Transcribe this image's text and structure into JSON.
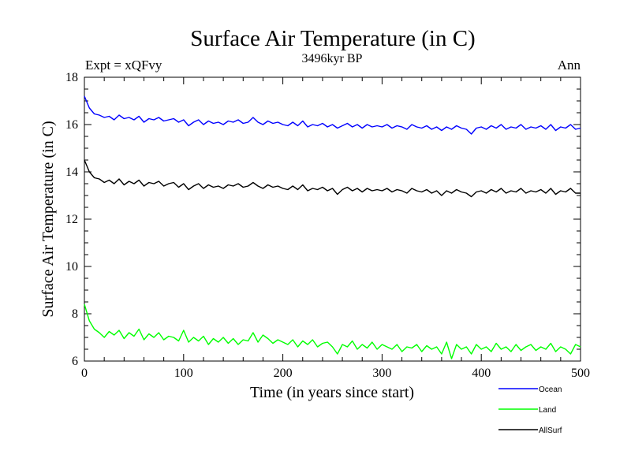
{
  "chart_data": {
    "type": "line",
    "title": "Surface Air Temperature (in C)",
    "subtitle": "3496kyr BP",
    "left_label": "Expt = xQFvy",
    "right_label": "Ann",
    "xlabel": "Time (in years since start)",
    "ylabel": "Surface Air Temperature (in C)",
    "xlim": [
      0,
      500
    ],
    "ylim": [
      6,
      18
    ],
    "xticks": [
      0,
      100,
      200,
      300,
      400,
      500
    ],
    "yticks": [
      6,
      8,
      10,
      12,
      14,
      16,
      18
    ],
    "legend_position": "bottom-right",
    "series": [
      {
        "name": "Ocean",
        "color": "#0000ff",
        "x": [
          0,
          5,
          10,
          15,
          20,
          25,
          30,
          35,
          40,
          45,
          50,
          55,
          60,
          65,
          70,
          75,
          80,
          85,
          90,
          95,
          100,
          105,
          110,
          115,
          120,
          125,
          130,
          135,
          140,
          145,
          150,
          155,
          160,
          165,
          170,
          175,
          180,
          185,
          190,
          195,
          200,
          205,
          210,
          215,
          220,
          225,
          230,
          235,
          240,
          245,
          250,
          255,
          260,
          265,
          270,
          275,
          280,
          285,
          290,
          295,
          300,
          305,
          310,
          315,
          320,
          325,
          330,
          335,
          340,
          345,
          350,
          355,
          360,
          365,
          370,
          375,
          380,
          385,
          390,
          395,
          400,
          405,
          410,
          415,
          420,
          425,
          430,
          435,
          440,
          445,
          450,
          455,
          460,
          465,
          470,
          475,
          480,
          485,
          490,
          495,
          500
        ],
        "values": [
          17.2,
          16.7,
          16.45,
          16.4,
          16.3,
          16.35,
          16.2,
          16.4,
          16.25,
          16.3,
          16.2,
          16.35,
          16.1,
          16.25,
          16.2,
          16.3,
          16.15,
          16.2,
          16.25,
          16.1,
          16.2,
          15.95,
          16.1,
          16.2,
          16.0,
          16.15,
          16.05,
          16.1,
          16.0,
          16.15,
          16.1,
          16.2,
          16.05,
          16.1,
          16.3,
          16.1,
          16.0,
          16.15,
          16.05,
          16.1,
          16.0,
          15.95,
          16.1,
          15.95,
          16.15,
          15.9,
          16.0,
          15.95,
          16.05,
          15.9,
          16.0,
          15.85,
          15.95,
          16.05,
          15.9,
          16.0,
          15.85,
          16.0,
          15.9,
          15.95,
          15.9,
          16.0,
          15.85,
          15.95,
          15.9,
          15.8,
          16.0,
          15.9,
          15.85,
          15.95,
          15.8,
          15.9,
          15.75,
          15.9,
          15.8,
          15.95,
          15.85,
          15.8,
          15.6,
          15.85,
          15.9,
          15.8,
          15.95,
          15.85,
          16.0,
          15.8,
          15.9,
          15.85,
          16.0,
          15.8,
          15.9,
          15.85,
          15.95,
          15.8,
          16.0,
          15.75,
          15.9,
          15.85,
          16.0,
          15.8,
          15.85
        ]
      },
      {
        "name": "Land",
        "color": "#00ff00",
        "x": [
          0,
          5,
          10,
          15,
          20,
          25,
          30,
          35,
          40,
          45,
          50,
          55,
          60,
          65,
          70,
          75,
          80,
          85,
          90,
          95,
          100,
          105,
          110,
          115,
          120,
          125,
          130,
          135,
          140,
          145,
          150,
          155,
          160,
          165,
          170,
          175,
          180,
          185,
          190,
          195,
          200,
          205,
          210,
          215,
          220,
          225,
          230,
          235,
          240,
          245,
          250,
          255,
          260,
          265,
          270,
          275,
          280,
          285,
          290,
          295,
          300,
          305,
          310,
          315,
          320,
          325,
          330,
          335,
          340,
          345,
          350,
          355,
          360,
          365,
          370,
          375,
          380,
          385,
          390,
          395,
          400,
          405,
          410,
          415,
          420,
          425,
          430,
          435,
          440,
          445,
          450,
          455,
          460,
          465,
          470,
          475,
          480,
          485,
          490,
          495,
          500
        ],
        "values": [
          8.4,
          7.7,
          7.35,
          7.2,
          7.0,
          7.25,
          7.1,
          7.3,
          6.95,
          7.2,
          7.05,
          7.35,
          6.9,
          7.15,
          7.0,
          7.2,
          6.9,
          7.05,
          7.0,
          6.85,
          7.3,
          6.8,
          7.0,
          6.85,
          7.05,
          6.7,
          6.95,
          6.8,
          7.0,
          6.75,
          6.95,
          6.7,
          6.9,
          6.85,
          7.2,
          6.8,
          7.1,
          6.95,
          6.75,
          6.9,
          6.8,
          6.7,
          6.9,
          6.6,
          6.85,
          6.7,
          6.9,
          6.6,
          6.75,
          6.8,
          6.6,
          6.3,
          6.7,
          6.6,
          6.85,
          6.5,
          6.7,
          6.55,
          6.8,
          6.5,
          6.7,
          6.6,
          6.5,
          6.7,
          6.4,
          6.6,
          6.55,
          6.7,
          6.4,
          6.65,
          6.5,
          6.6,
          6.3,
          6.8,
          6.1,
          6.7,
          6.5,
          6.6,
          6.3,
          6.7,
          6.5,
          6.6,
          6.4,
          6.75,
          6.5,
          6.6,
          6.4,
          6.7,
          6.45,
          6.6,
          6.7,
          6.45,
          6.6,
          6.5,
          6.75,
          6.4,
          6.6,
          6.5,
          6.3,
          6.7,
          6.6
        ]
      },
      {
        "name": "AllSurf",
        "color": "#000000",
        "x": [
          0,
          5,
          10,
          15,
          20,
          25,
          30,
          35,
          40,
          45,
          50,
          55,
          60,
          65,
          70,
          75,
          80,
          85,
          90,
          95,
          100,
          105,
          110,
          115,
          120,
          125,
          130,
          135,
          140,
          145,
          150,
          155,
          160,
          165,
          170,
          175,
          180,
          185,
          190,
          195,
          200,
          205,
          210,
          215,
          220,
          225,
          230,
          235,
          240,
          245,
          250,
          255,
          260,
          265,
          270,
          275,
          280,
          285,
          290,
          295,
          300,
          305,
          310,
          315,
          320,
          325,
          330,
          335,
          340,
          345,
          350,
          355,
          360,
          365,
          370,
          375,
          380,
          385,
          390,
          395,
          400,
          405,
          410,
          415,
          420,
          425,
          430,
          435,
          440,
          445,
          450,
          455,
          460,
          465,
          470,
          475,
          480,
          485,
          490,
          495,
          500
        ],
        "values": [
          14.5,
          14.0,
          13.75,
          13.7,
          13.55,
          13.65,
          13.5,
          13.7,
          13.45,
          13.6,
          13.5,
          13.65,
          13.4,
          13.55,
          13.5,
          13.6,
          13.4,
          13.5,
          13.55,
          13.35,
          13.5,
          13.25,
          13.4,
          13.5,
          13.3,
          13.45,
          13.35,
          13.4,
          13.3,
          13.45,
          13.4,
          13.5,
          13.35,
          13.4,
          13.55,
          13.4,
          13.3,
          13.45,
          13.35,
          13.4,
          13.3,
          13.25,
          13.4,
          13.25,
          13.45,
          13.2,
          13.3,
          13.25,
          13.35,
          13.2,
          13.3,
          13.05,
          13.25,
          13.35,
          13.2,
          13.3,
          13.15,
          13.3,
          13.2,
          13.25,
          13.2,
          13.3,
          13.15,
          13.25,
          13.2,
          13.1,
          13.3,
          13.2,
          13.15,
          13.25,
          13.1,
          13.2,
          13.0,
          13.2,
          13.1,
          13.25,
          13.15,
          13.1,
          12.95,
          13.15,
          13.2,
          13.1,
          13.25,
          13.15,
          13.3,
          13.1,
          13.2,
          13.15,
          13.3,
          13.1,
          13.2,
          13.15,
          13.25,
          13.1,
          13.3,
          13.05,
          13.2,
          13.15,
          13.3,
          13.1,
          13.1
        ]
      }
    ]
  }
}
